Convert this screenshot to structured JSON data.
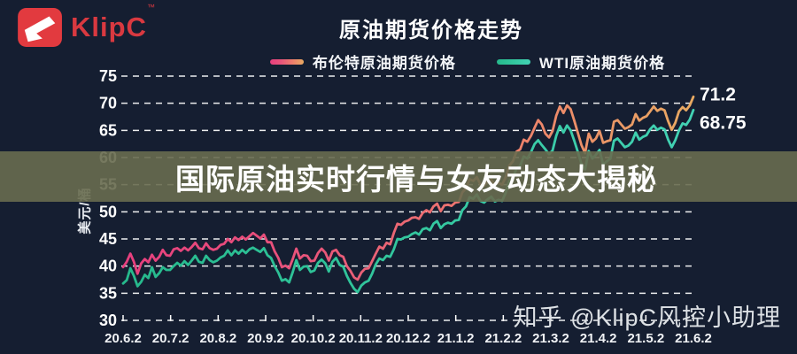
{
  "header": {
    "logo_text": "KlipC",
    "logo_tm": "™",
    "title": "原油期货价格走势"
  },
  "banner": {
    "text": "国际原油实时行情与女友动态大揭秘"
  },
  "watermark": {
    "text": "知乎 @KlipC风控小助理"
  },
  "colors": {
    "background": "#151e31",
    "banner": "#686c4f",
    "logo_red": "#d93940",
    "grid": "#ffffff",
    "brent_start": "#e73f7e",
    "brent_end": "#e8aa62",
    "wti_start": "#26b98c",
    "wti_end": "#42d2b4"
  },
  "chart_data": {
    "type": "line",
    "title": "原油期货价格走势",
    "xlabel": "",
    "ylabel": "美元/桶",
    "ylim": [
      30,
      75
    ],
    "ytick_step": 5,
    "grid": "horizontal-dashed",
    "legend_position": "top",
    "x_categories": [
      "20.6.2",
      "20.7.2",
      "20.8.2",
      "20.9.2",
      "20.10.2",
      "20.11.2",
      "20.12.2",
      "21.1.2",
      "21.2.2",
      "21.3.2",
      "21.4.2",
      "21.5.2",
      "21.6.2"
    ],
    "series": [
      {
        "name": "布伦特原油期货价格",
        "gradient": [
          "#e73f7e",
          "#e8557a",
          "#ee7e6c",
          "#e8aa62"
        ],
        "values": [
          39.8,
          40.8,
          42.3,
          40.8,
          38.6,
          40.5,
          41.3,
          40.7,
          42.1,
          41.0,
          41.7,
          43.0,
          42.0,
          41.9,
          43.1,
          43.3,
          42.8,
          43.4,
          42.9,
          43.5,
          44.3,
          43.3,
          43.1,
          44.2,
          43.3,
          43.0,
          43.2,
          43.9,
          44.1,
          45.0,
          44.4,
          45.3,
          44.8,
          45.4,
          44.9,
          45.5,
          46.1,
          45.6,
          45.1,
          45.8,
          44.4,
          44.4,
          42.7,
          41.5,
          39.8,
          40.1,
          39.6,
          41.3,
          43.2,
          41.4,
          42.0,
          41.9,
          40.9,
          41.0,
          42.4,
          43.2,
          42.5,
          41.0,
          42.7,
          43.0,
          42.0,
          41.7,
          40.0,
          39.1,
          37.9,
          37.5,
          38.8,
          39.5,
          39.6,
          40.9,
          42.3,
          43.6,
          43.2,
          44.3,
          44.0,
          46.1,
          47.8,
          47.6,
          48.2,
          48.4,
          48.9,
          49.0,
          48.7,
          49.8,
          50.3,
          49.9,
          51.0,
          51.5,
          50.1,
          51.2,
          51.3,
          51.1,
          51.7,
          51.8,
          53.6,
          54.3,
          56.0,
          55.7,
          56.4,
          55.1,
          54.8,
          55.5,
          55.9,
          55.0,
          55.3,
          55.0,
          56.4,
          58.5,
          59.3,
          61.1,
          61.5,
          63.3,
          62.9,
          64.0,
          65.5,
          66.9,
          66.1,
          64.4,
          63.7,
          64.9,
          67.7,
          69.4,
          68.2,
          69.6,
          68.9,
          66.8,
          64.5,
          62.3,
          60.8,
          64.4,
          62.9,
          63.5,
          64.9,
          62.7,
          63.0,
          63.2,
          66.6,
          66.9,
          66.1,
          65.3,
          65.6,
          66.1,
          68.0,
          66.8,
          67.3,
          67.6,
          68.5,
          69.4,
          68.6,
          69.0,
          68.7,
          66.7,
          65.1,
          66.4,
          68.5,
          69.3,
          68.7,
          69.6,
          71.2
        ]
      },
      {
        "name": "WTI原油期货价格",
        "gradient": [
          "#26b98c",
          "#33c79e",
          "#42d2b4"
        ],
        "values": [
          36.8,
          37.4,
          39.6,
          38.2,
          36.3,
          37.1,
          38.4,
          37.8,
          39.8,
          38.0,
          38.7,
          39.8,
          39.3,
          39.3,
          40.0,
          40.6,
          40.1,
          40.9,
          40.2,
          41.0,
          41.9,
          40.8,
          40.6,
          41.9,
          41.1,
          40.7,
          41.0,
          41.6,
          41.9,
          42.9,
          42.0,
          42.9,
          42.3,
          43.0,
          42.4,
          43.1,
          43.4,
          43.0,
          42.6,
          43.3,
          42.0,
          41.5,
          40.0,
          38.8,
          37.3,
          37.6,
          37.0,
          38.9,
          41.1,
          39.3,
          39.9,
          40.0,
          38.9,
          39.2,
          40.6,
          41.2,
          40.5,
          39.0,
          40.8,
          41.5,
          40.2,
          39.9,
          38.2,
          36.9,
          35.8,
          35.2,
          36.4,
          37.0,
          37.3,
          38.6,
          40.3,
          41.4,
          41.1,
          41.9,
          41.7,
          43.1,
          45.0,
          44.9,
          45.3,
          45.4,
          45.9,
          46.2,
          45.8,
          46.8,
          47.0,
          46.6,
          47.8,
          48.3,
          47.0,
          47.7,
          48.0,
          47.8,
          48.4,
          48.5,
          50.3,
          51.0,
          52.7,
          52.4,
          53.2,
          52.0,
          51.7,
          52.3,
          52.8,
          51.9,
          52.2,
          52.0,
          53.5,
          55.7,
          56.3,
          58.0,
          58.5,
          60.2,
          59.8,
          61.0,
          62.5,
          63.2,
          62.3,
          61.5,
          60.6,
          61.3,
          64.0,
          65.8,
          64.6,
          65.9,
          65.0,
          63.1,
          61.0,
          58.8,
          57.8,
          61.2,
          59.8,
          60.5,
          61.4,
          58.7,
          59.3,
          59.8,
          63.1,
          63.5,
          62.7,
          61.9,
          62.2,
          62.9,
          64.6,
          63.3,
          63.8,
          64.1,
          65.2,
          65.9,
          65.1,
          65.5,
          65.2,
          63.3,
          61.9,
          63.2,
          65.0,
          66.3,
          66.0,
          67.0,
          68.75
        ]
      }
    ],
    "annotations": [
      {
        "text": "71.2",
        "value": 71.2,
        "dy": 4
      },
      {
        "text": "68.75",
        "value": 68.75,
        "dy": 21
      }
    ]
  }
}
